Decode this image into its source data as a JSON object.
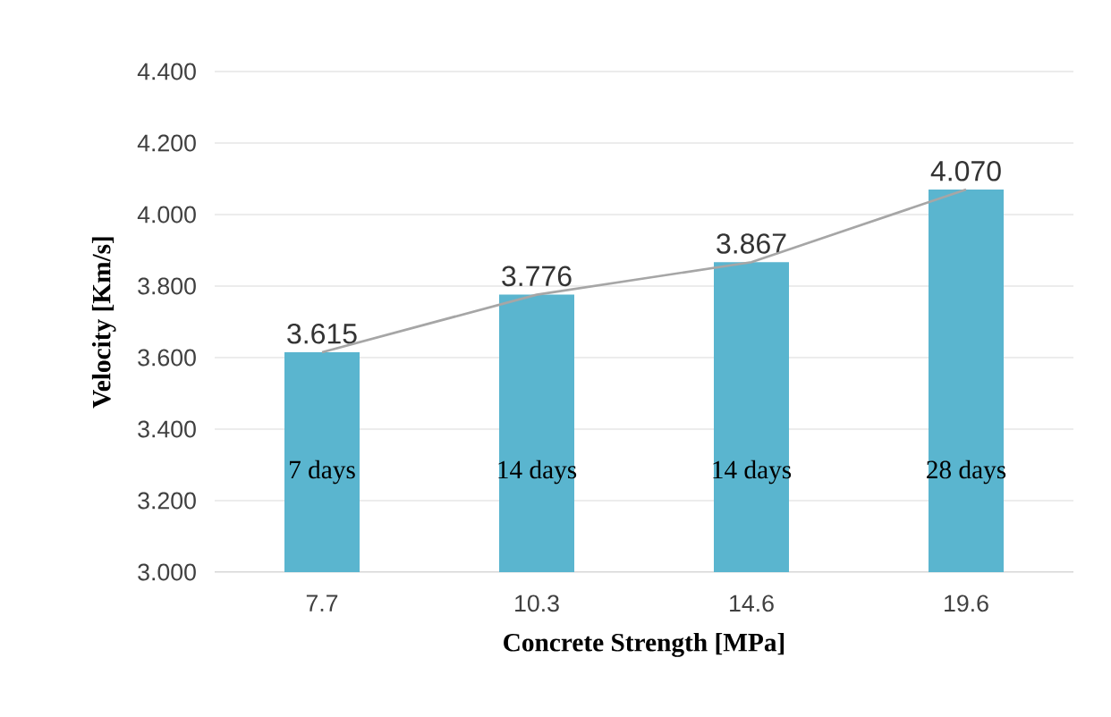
{
  "chart_data": {
    "type": "bar",
    "xlabel": "Concrete Strength [MPa]",
    "ylabel": "Velocity [Km/s]",
    "categories": [
      "7.7",
      "10.3",
      "14.6",
      "19.6"
    ],
    "series": [
      {
        "color": "#5ab5cf",
        "values": [
          3.615,
          3.776,
          3.867,
          4.07
        ],
        "value_labels": [
          "3.615",
          "3.776",
          "3.867",
          "4.070"
        ]
      },
      {
        "type": "line",
        "color": "#a6a6a6",
        "values": [
          3.615,
          3.776,
          3.867,
          4.07
        ]
      }
    ],
    "ylim": [
      3.0,
      4.4
    ],
    "yticks": [
      {
        "value": 3.0,
        "label": "3.000"
      },
      {
        "value": 3.2,
        "label": "3.200"
      },
      {
        "value": 3.4,
        "label": "3.400"
      },
      {
        "value": 3.6,
        "label": "3.600"
      },
      {
        "value": 3.8,
        "label": "3.800"
      },
      {
        "value": 4.0,
        "label": "4.000"
      },
      {
        "value": 4.2,
        "label": "4.200"
      },
      {
        "value": 4.4,
        "label": "4.400"
      }
    ],
    "grid": "y",
    "annotations": [
      "7 days",
      "14 days",
      "14 days",
      "28 days"
    ]
  }
}
